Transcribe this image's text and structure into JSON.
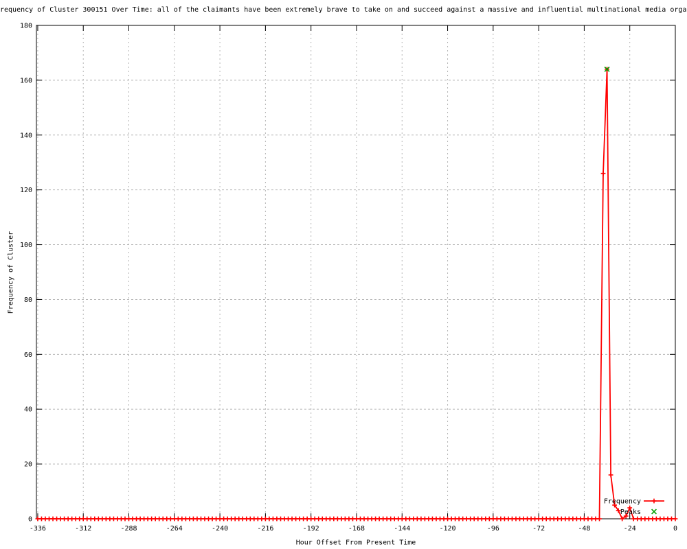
{
  "chart_data": {
    "type": "line",
    "title": "requency of Cluster 300151 Over Time: all of the claimants have been extremely brave to take on and succeed against a massive and influential multinational media organ",
    "xlabel": "Hour Offset From Present Time",
    "ylabel": "Frequency of Cluster",
    "xlim": [
      -336.7,
      0
    ],
    "ylim": [
      0,
      180
    ],
    "xticks": [
      -336,
      -312,
      -288,
      -264,
      -240,
      -216,
      -192,
      -168,
      -144,
      -120,
      -96,
      -72,
      -48,
      -24,
      0
    ],
    "yticks": [
      0,
      20,
      40,
      60,
      80,
      100,
      120,
      140,
      160,
      180
    ],
    "grid": true,
    "legend_position": "bottom-right-inside",
    "colors": {
      "border": "#000000",
      "grid": "#b4b4b4",
      "text": "#000000",
      "background": "#ffffff"
    },
    "series": [
      {
        "name": "Frequency",
        "color": "#ff0000",
        "style": "linespoints",
        "marker": "plus",
        "x_start": -336,
        "x_step": 2,
        "values": [
          0,
          0,
          0,
          0,
          0,
          0,
          0,
          0,
          0,
          0,
          0,
          0,
          0,
          0,
          0,
          0,
          0,
          0,
          0,
          0,
          0,
          0,
          0,
          0,
          0,
          0,
          0,
          0,
          0,
          0,
          0,
          0,
          0,
          0,
          0,
          0,
          0,
          0,
          0,
          0,
          0,
          0,
          0,
          0,
          0,
          0,
          0,
          0,
          0,
          0,
          0,
          0,
          0,
          0,
          0,
          0,
          0,
          0,
          0,
          0,
          0,
          0,
          0,
          0,
          0,
          0,
          0,
          0,
          0,
          0,
          0,
          0,
          0,
          0,
          0,
          0,
          0,
          0,
          0,
          0,
          0,
          0,
          0,
          0,
          0,
          0,
          0,
          0,
          0,
          0,
          0,
          0,
          0,
          0,
          0,
          0,
          0,
          0,
          0,
          0,
          0,
          0,
          0,
          0,
          0,
          0,
          0,
          0,
          0,
          0,
          0,
          0,
          0,
          0,
          0,
          0,
          0,
          0,
          0,
          0,
          0,
          0,
          0,
          0,
          0,
          0,
          0,
          0,
          0,
          0,
          0,
          0,
          0,
          0,
          0,
          0,
          0,
          0,
          0,
          0,
          0,
          0,
          0,
          0,
          0,
          0,
          0,
          0,
          0,
          126,
          164,
          16,
          5,
          3,
          0,
          1,
          4,
          0,
          0,
          0,
          0,
          0,
          0,
          0,
          0,
          0,
          0,
          0,
          0
        ]
      },
      {
        "name": "Peaks",
        "color": "#00a000",
        "style": "points",
        "marker": "cross",
        "points": [
          {
            "x": -36,
            "y": 164
          }
        ]
      }
    ]
  }
}
